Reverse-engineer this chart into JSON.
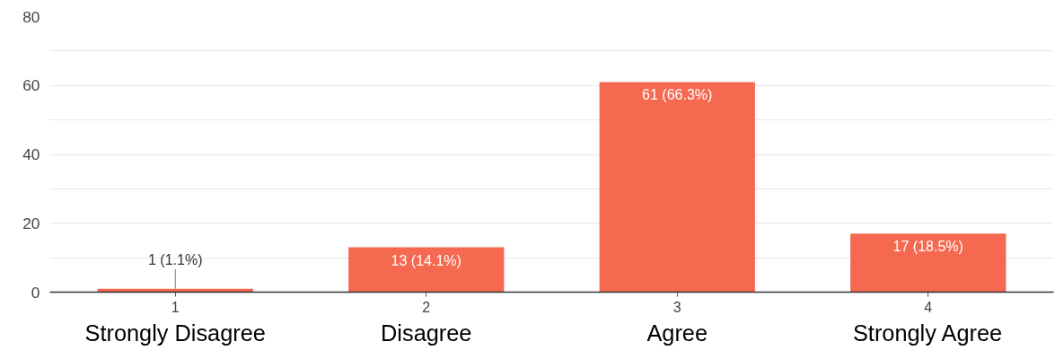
{
  "chart_data": {
    "type": "bar",
    "categories": [
      "1",
      "2",
      "3",
      "4"
    ],
    "values": [
      1,
      13,
      61,
      17
    ],
    "value_labels": [
      "1 (1.1%)",
      "13 (14.1%)",
      "61 (66.3%)",
      "17 (18.5%)"
    ],
    "color": "#f4694f",
    "ylim": [
      0,
      80
    ],
    "yticks": [
      0,
      {
        "value": 10,
        "label": null
      },
      20,
      {
        "value": 30,
        "label": null
      },
      40,
      {
        "value": 50,
        "label": null
      },
      60,
      {
        "value": 70,
        "label": null
      },
      80
    ],
    "grid": "y",
    "annotations": [
      "Strongly Disagree",
      "Disagree",
      "Agree",
      "Strongly Agree"
    ]
  }
}
